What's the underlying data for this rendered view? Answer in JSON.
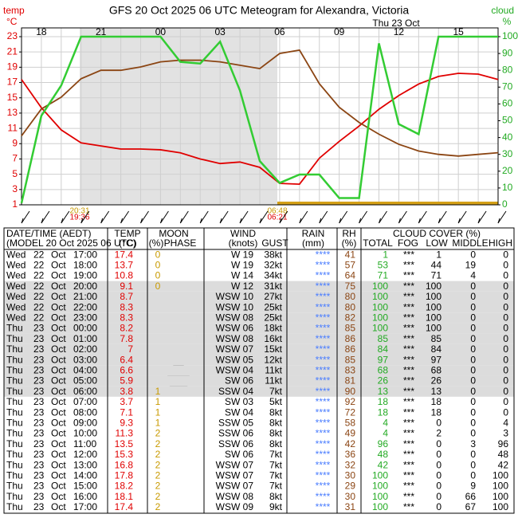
{
  "chart_data": {
    "type": "line",
    "title": "GFS  20 Oct 2025 06 UTC  Meteogram for Alexandra, Victoria",
    "ylabel": [
      "temp",
      "°C"
    ],
    "y2label": [
      "cloud",
      "%"
    ],
    "date_label": "Thu 23 Oct",
    "categories": [
      "17:00",
      "18:00",
      "19:00",
      "20:00",
      "21:00",
      "22:00",
      "23:00",
      "00:00",
      "01:00",
      "02:00",
      "03:00",
      "04:00",
      "05:00",
      "06:00",
      "07:00",
      "08:00",
      "09:00",
      "10:00",
      "11:00",
      "12:00",
      "13:00",
      "14:00",
      "15:00",
      "16:00",
      "17:00"
    ],
    "xtick_labels": [
      "18",
      "21",
      "00",
      "03",
      "06",
      "09",
      "12",
      "15"
    ],
    "ylim": [
      1,
      23
    ],
    "yticks": [
      1,
      3,
      5,
      7,
      9,
      11,
      13,
      15,
      17,
      19,
      21,
      23
    ],
    "y2lim": [
      0,
      100
    ],
    "y2ticks": [
      0,
      10,
      20,
      30,
      40,
      50,
      60,
      70,
      80,
      90,
      100
    ],
    "grid": true,
    "series": [
      {
        "color": "#e00000",
        "values": [
          17.4,
          13.7,
          10.8,
          9.1,
          8.7,
          8.3,
          8.3,
          8.2,
          7.8,
          7.0,
          6.4,
          6.6,
          5.9,
          3.8,
          3.7,
          7.1,
          9.3,
          11.3,
          13.5,
          15.3,
          16.8,
          17.8,
          18.2,
          18.1,
          17.4
        ]
      },
      {
        "color": "#8b4513",
        "axis": "y2",
        "values": [
          41,
          57,
          64,
          75,
          80,
          80,
          82,
          85,
          86,
          86,
          85,
          83,
          81,
          90,
          92,
          72,
          58,
          49,
          42,
          36,
          32,
          30,
          29,
          30,
          31
        ]
      },
      {
        "color": "#33cc33",
        "axis": "y2",
        "values": [
          1,
          53,
          71,
          100,
          100,
          100,
          100,
          100,
          85,
          84,
          97,
          68,
          26,
          13,
          18,
          18,
          4,
          4,
          96,
          48,
          42,
          100,
          100,
          100,
          100
        ]
      }
    ],
    "annotations": [
      {
        "text": "20:31",
        "color": "#c89a00"
      },
      {
        "text": "19:36",
        "color": "#e00000"
      },
      {
        "text": "06:48",
        "color": "#c89a00"
      },
      {
        "text": "06:21",
        "color": "#e00000"
      }
    ]
  },
  "table": {
    "header": {
      "datetime": "DATE/TIME (AEDT)",
      "model": "(MODEL 20 Oct 2025 06 UTC)",
      "temp": "TEMP",
      "temp_unit": "(°C)",
      "moon": "MOON",
      "moon_unit": "(%)",
      "phase": "PHASE",
      "wind": "WIND",
      "wind_unit": "(knots)",
      "gust": "GUST",
      "rain": "RAIN",
      "rain_unit": "(mm)",
      "rh": "RH",
      "rh_unit": "(%)",
      "cloud": "CLOUD COVER (%)",
      "total": "TOTAL",
      "fog": "FOG",
      "low": "LOW",
      "middle": "MIDDLE",
      "high": "HIGH"
    },
    "rows": [
      [
        "Wed",
        22,
        "Oct",
        0,
        "W 19",
        "38kt",
        "****",
        "***",
        1,
        0,
        0
      ],
      [
        "Wed",
        22,
        "Oct",
        0,
        "W 19",
        "32kt",
        "****",
        "***",
        44,
        19,
        0
      ],
      [
        "Wed",
        22,
        "Oct",
        0,
        "W 14",
        "34kt",
        "****",
        "***",
        71,
        4,
        0
      ],
      [
        "Wed",
        22,
        "Oct",
        0,
        "W 12",
        "31kt",
        "****",
        "***",
        100,
        0,
        0
      ],
      [
        "Wed",
        22,
        "Oct",
        null,
        "WSW 10",
        "27kt",
        "****",
        "***",
        100,
        0,
        0
      ],
      [
        "Wed",
        22,
        "Oct",
        null,
        "WSW 10",
        "25kt",
        "****",
        "***",
        100,
        0,
        0
      ],
      [
        "Wed",
        22,
        "Oct",
        null,
        "WSW 08",
        "25kt",
        "****",
        "***",
        100,
        0,
        0
      ],
      [
        "Thu",
        23,
        "Oct",
        null,
        "WSW 06",
        "18kt",
        "****",
        "***",
        100,
        0,
        0
      ],
      [
        "Thu",
        23,
        "Oct",
        null,
        "WSW 08",
        "16kt",
        "****",
        "***",
        85,
        0,
        0
      ],
      [
        "Thu",
        23,
        "Oct",
        null,
        "WSW 07",
        "15kt",
        "****",
        "***",
        84,
        0,
        0
      ],
      [
        "Thu",
        23,
        "Oct",
        null,
        "WSW 05",
        "12kt",
        "****",
        "***",
        97,
        0,
        0
      ],
      [
        "Thu",
        23,
        "Oct",
        null,
        "WSW 04",
        "11kt",
        "****",
        "***",
        68,
        0,
        0
      ],
      [
        "Thu",
        23,
        "Oct",
        null,
        "SW 06",
        "11kt",
        "****",
        "***",
        26,
        0,
        0
      ],
      [
        "Thu",
        23,
        "Oct",
        1,
        "SSW 04",
        "7kt",
        "****",
        "***",
        13,
        0,
        0
      ],
      [
        "Thu",
        23,
        "Oct",
        1,
        "SW 03",
        "5kt",
        "****",
        "***",
        18,
        0,
        0
      ],
      [
        "Thu",
        23,
        "Oct",
        1,
        "SW 04",
        "8kt",
        "****",
        "***",
        18,
        0,
        0
      ],
      [
        "Thu",
        23,
        "Oct",
        1,
        "SSW 05",
        "8kt",
        "****",
        "***",
        0,
        0,
        4
      ],
      [
        "Thu",
        23,
        "Oct",
        2,
        "SSW 06",
        "8kt",
        "****",
        "***",
        2,
        0,
        3
      ],
      [
        "Thu",
        23,
        "Oct",
        2,
        "SSW 06",
        "8kt",
        "****",
        "***",
        0,
        3,
        96
      ],
      [
        "Thu",
        23,
        "Oct",
        2,
        "SW 06",
        "7kt",
        "****",
        "***",
        0,
        0,
        48
      ],
      [
        "Thu",
        23,
        "Oct",
        2,
        "WSW 07",
        "7kt",
        "****",
        "***",
        0,
        0,
        42
      ],
      [
        "Thu",
        23,
        "Oct",
        2,
        "WSW 07",
        "7kt",
        "****",
        "***",
        0,
        0,
        100
      ],
      [
        "Thu",
        23,
        "Oct",
        2,
        "WSW 07",
        "7kt",
        "****",
        "***",
        0,
        9,
        100
      ],
      [
        "Thu",
        23,
        "Oct",
        2,
        "WSW 08",
        "8kt",
        "****",
        "***",
        0,
        66,
        100
      ],
      [
        "Thu",
        23,
        "Oct",
        2,
        "WSW 09",
        "9kt",
        "****",
        "***",
        0,
        67,
        100
      ]
    ]
  }
}
